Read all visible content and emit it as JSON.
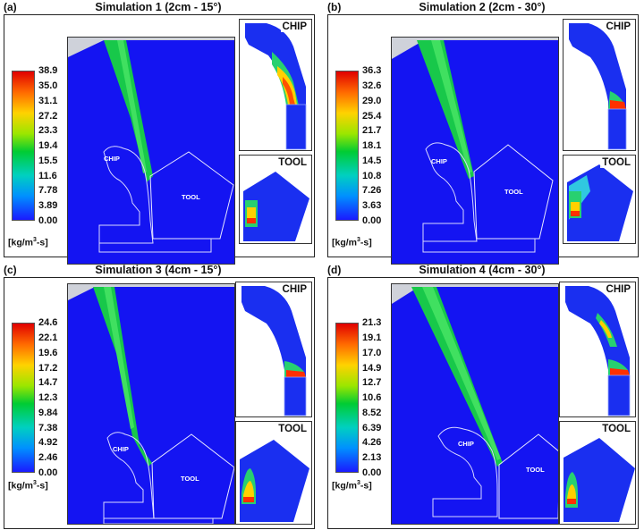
{
  "unit": "[kg/m",
  "unit_sup": "3",
  "unit_tail": "-s]",
  "chip_label": "CHIP",
  "tool_label": "TOOL",
  "panels": [
    {
      "letter": "(a)",
      "title": "Simulation 1 (2cm - 15°)",
      "ticks": [
        "38.9",
        "35.0",
        "31.1",
        "27.2",
        "23.3",
        "19.4",
        "15.5",
        "11.6",
        "7.78",
        "3.89",
        "0.00"
      ]
    },
    {
      "letter": "(b)",
      "title": "Simulation 2 (2cm - 30°)",
      "ticks": [
        "36.3",
        "32.6",
        "29.0",
        "25.4",
        "21.7",
        "18.1",
        "14.5",
        "10.8",
        "7.26",
        "3.63",
        "0.00"
      ]
    },
    {
      "letter": "(c)",
      "title": "Simulation 3 (4cm - 15°)",
      "ticks": [
        "24.6",
        "22.1",
        "19.6",
        "17.2",
        "14.7",
        "12.3",
        "9.84",
        "7.38",
        "4.92",
        "2.46",
        "0.00"
      ]
    },
    {
      "letter": "(d)",
      "title": "Simulation 4 (4cm - 30°)",
      "ticks": [
        "21.3",
        "19.1",
        "17.0",
        "14.9",
        "12.7",
        "10.6",
        "8.52",
        "6.39",
        "4.26",
        "2.13",
        "0.00"
      ]
    }
  ]
}
